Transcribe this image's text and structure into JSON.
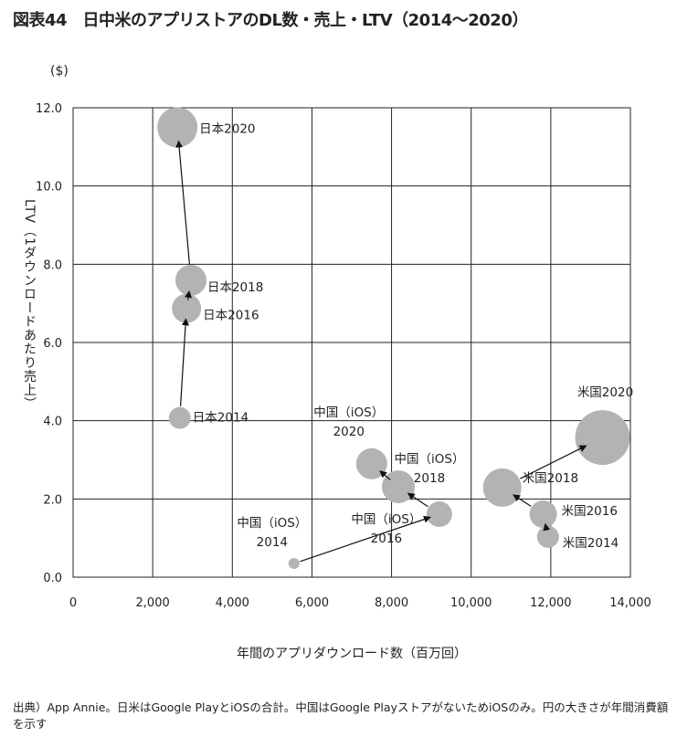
{
  "title": "図表44　日中米のアプリストアのDL数・売上・LTV（2014〜2020）",
  "footnote": "出典）App Annie。日米はGoogle PlayとiOSの合計。中国はGoogle PlayストアがないためiOSのみ。円の大きさが年間消費額を示す",
  "chart_data": {
    "type": "scatter",
    "subtype": "bubble",
    "title": "図表44　日中米のアプリストアのDL数・売上・LTV（2014〜2020）",
    "xlabel": "年間のアプリダウンロード数（百万回）",
    "ylabel": "LTV（1ダウンロードあたり売上）",
    "yunit": "($)",
    "xlim": [
      0,
      14000
    ],
    "ylim": [
      0,
      12
    ],
    "xticks": [
      "0",
      "2,000",
      "4,000",
      "6,000",
      "8,000",
      "10,000",
      "12,000",
      "14,000"
    ],
    "yticks": [
      "0.0",
      "2.0",
      "4.0",
      "6.0",
      "8.0",
      "10.0",
      "12.0"
    ],
    "xtick_values": [
      0,
      2000,
      4000,
      6000,
      8000,
      10000,
      12000,
      14000
    ],
    "ytick_values": [
      0,
      2,
      4,
      6,
      8,
      10,
      12
    ],
    "grid": true,
    "bubble_color": "#b3b3b3",
    "size_meaning": "円の大きさが年間消費額を示す",
    "series": [
      {
        "name": "日本",
        "points": [
          {
            "label": "日本2014",
            "x": 2680,
            "y": 4.07,
            "relative_spending": 12
          },
          {
            "label": "日本2016",
            "x": 2850,
            "y": 6.87,
            "relative_spending": 16
          },
          {
            "label": "日本2018",
            "x": 2960,
            "y": 7.59,
            "relative_spending": 17
          },
          {
            "label": "日本2020",
            "x": 2620,
            "y": 11.5,
            "relative_spending": 22
          }
        ]
      },
      {
        "name": "中国（iOS）",
        "points": [
          {
            "label": "中国（iOS）\n2014",
            "x": 5550,
            "y": 0.35,
            "relative_spending": 6
          },
          {
            "label": "中国（iOS）\n2016",
            "x": 9200,
            "y": 1.61,
            "relative_spending": 14
          },
          {
            "label": "中国（iOS）\n2018",
            "x": 8170,
            "y": 2.31,
            "relative_spending": 18
          },
          {
            "label": "中国（iOS）\n2020",
            "x": 7500,
            "y": 2.9,
            "relative_spending": 17
          }
        ]
      },
      {
        "name": "米国",
        "points": [
          {
            "label": "米国2014",
            "x": 11930,
            "y": 1.03,
            "relative_spending": 12
          },
          {
            "label": "米国2016",
            "x": 11810,
            "y": 1.61,
            "relative_spending": 15
          },
          {
            "label": "米国2018",
            "x": 10780,
            "y": 2.29,
            "relative_spending": 21
          },
          {
            "label": "米国2020",
            "x": 13300,
            "y": 3.57,
            "relative_spending": 30
          }
        ]
      }
    ]
  }
}
